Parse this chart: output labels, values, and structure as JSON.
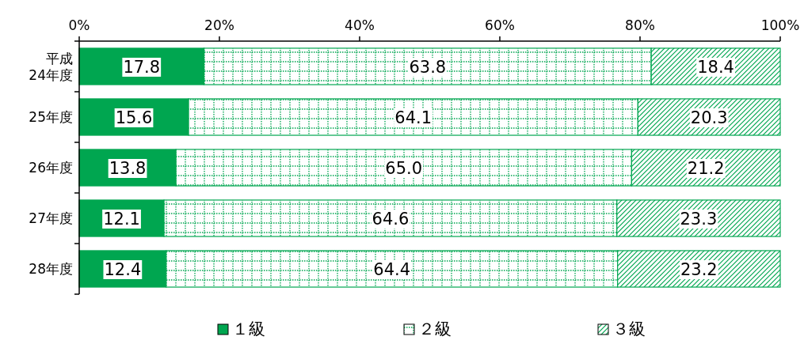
{
  "chart_data": {
    "type": "bar",
    "orientation": "horizontal",
    "stacked": true,
    "categories": [
      "平成\n24年度",
      "25年度",
      "26年度",
      "27年度",
      "28年度"
    ],
    "series": [
      {
        "name": "１級",
        "color": "#00a650",
        "values": [
          17.8,
          15.6,
          13.8,
          12.1,
          12.4
        ],
        "value_labels": [
          "17.8",
          "15.6",
          "13.8",
          "12.1",
          "12.4"
        ]
      },
      {
        "name": "２級",
        "color": "#00a650",
        "values": [
          63.8,
          64.1,
          65.0,
          64.6,
          64.4
        ],
        "value_labels": [
          "63.8",
          "64.1",
          "65.0",
          "64.6",
          "64.4"
        ]
      },
      {
        "name": "３級",
        "color": "#00a650",
        "values": [
          18.4,
          20.3,
          21.2,
          23.3,
          23.2
        ],
        "value_labels": [
          "18.4",
          "20.3",
          "21.2",
          "23.3",
          "23.2"
        ]
      }
    ],
    "xlim": [
      0,
      100
    ],
    "xticks": [
      {
        "value": 0,
        "label": "0%"
      },
      {
        "value": 20,
        "label": "20%"
      },
      {
        "value": 40,
        "label": "40%"
      },
      {
        "value": 60,
        "label": "60%"
      },
      {
        "value": 80,
        "label": "80%"
      },
      {
        "value": 100,
        "label": "100%"
      }
    ],
    "grid": false,
    "legend": "bottom"
  }
}
